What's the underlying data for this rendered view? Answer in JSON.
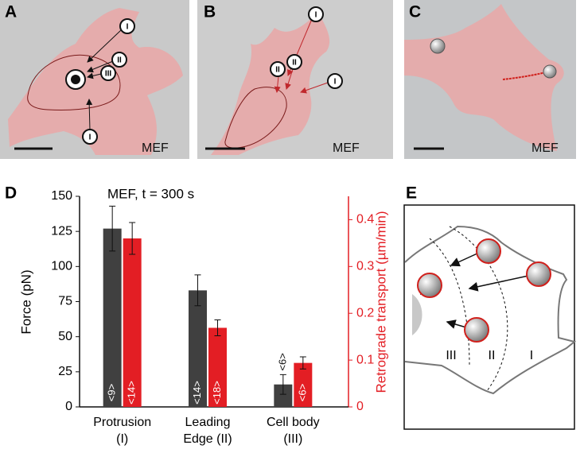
{
  "panels": [
    {
      "label": "A",
      "caption": "MEF",
      "markers": [
        "I",
        "II",
        "III",
        "I"
      ]
    },
    {
      "label": "B",
      "caption": "MEF",
      "markers": [
        "I",
        "II",
        "II",
        "I"
      ]
    },
    {
      "label": "C",
      "caption": "MEF"
    }
  ],
  "chart_data": {
    "type": "bar",
    "label": "D",
    "annotation": "MEF, t = 300 s",
    "y_label": "Force (pN)",
    "y2_label": "Retrograde transport (µm/min)",
    "categories": [
      [
        "Protrusion",
        "(I)"
      ],
      [
        "Leading",
        "Edge (II)"
      ],
      [
        "Cell body",
        "(III)"
      ]
    ],
    "series": [
      {
        "color": "#404040",
        "values": [
          127,
          83,
          16
        ],
        "errors": [
          16,
          11,
          7
        ],
        "sample_labels": [
          "<9>",
          "<14>",
          "<6>"
        ]
      },
      {
        "color": "#e31e24",
        "axis": "y2",
        "values": [
          0.36,
          0.169,
          0.094
        ],
        "errors": [
          0.034,
          0.017,
          0.013
        ],
        "sample_labels": [
          "<14>",
          "<18>",
          "<6>"
        ]
      }
    ],
    "ylim": [
      0,
      150
    ],
    "yticks": [
      0,
      25,
      50,
      75,
      100,
      125,
      150
    ],
    "y2lim": [
      0,
      0.45
    ],
    "y2ticks": [
      0,
      0.1,
      0.2,
      0.3,
      0.4
    ]
  },
  "diagram": {
    "label": "E",
    "regions": [
      "III",
      "II",
      "I"
    ]
  }
}
